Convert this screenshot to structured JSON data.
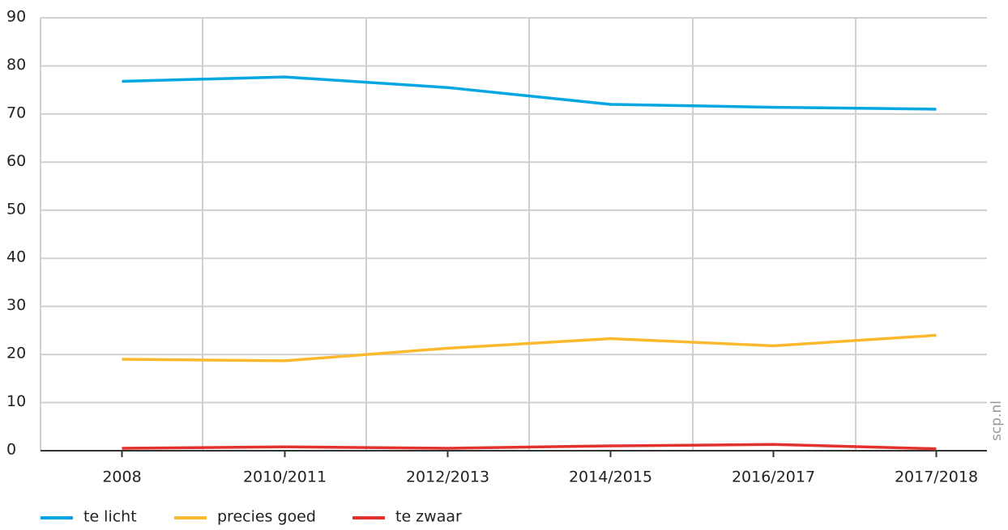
{
  "chart_data": {
    "type": "line",
    "categories": [
      "2008",
      "2010/2011",
      "2012/2013",
      "2014/2015",
      "2016/2017",
      "2017/2018"
    ],
    "series": [
      {
        "name": "te licht",
        "color": "#00a6e2",
        "values": [
          76.8,
          77.7,
          75.5,
          72.0,
          71.4,
          71.0
        ]
      },
      {
        "name": "precies goed",
        "color": "#fbba2e",
        "values": [
          19.0,
          18.7,
          21.3,
          23.3,
          21.8,
          24.0
        ]
      },
      {
        "name": "te zwaar",
        "color": "#e3312d",
        "values": [
          0.5,
          0.8,
          0.5,
          1.0,
          1.3,
          0.4
        ]
      }
    ],
    "ylim": [
      0,
      90
    ],
    "yticks": [
      0,
      10,
      20,
      30,
      40,
      50,
      60,
      70,
      80,
      90
    ],
    "grid": true,
    "legend": "bottom",
    "watermark": "scp.nl"
  }
}
